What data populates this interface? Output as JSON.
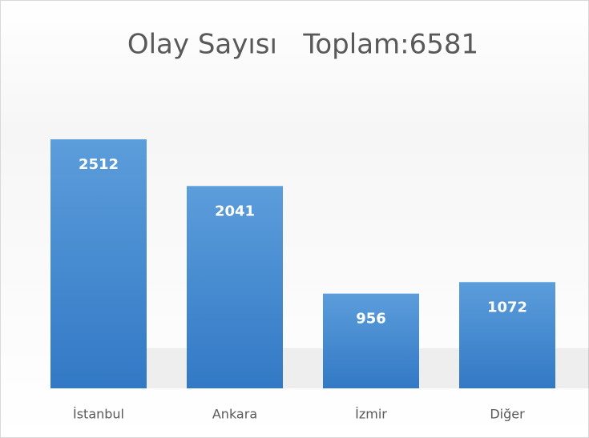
{
  "chart_data": {
    "type": "bar",
    "title": "Olay Sayısı   Toplam:6581",
    "categories": [
      "İstanbul",
      "Ankara",
      "İzmir",
      "Diğer"
    ],
    "values": [
      2512,
      2041,
      956,
      1072
    ],
    "color": "#4a8ed1"
  }
}
